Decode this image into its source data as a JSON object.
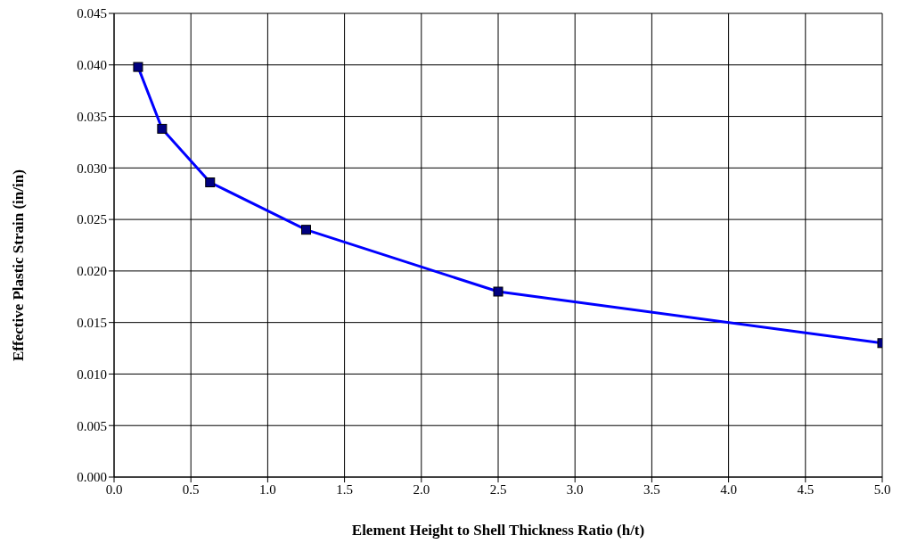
{
  "chart_data": {
    "type": "line",
    "xlabel": "Element Height to Shell Thickness Ratio (h/t)",
    "ylabel": "Effective Plastic Strain (in/in)",
    "x": [
      0.15625,
      0.3125,
      0.625,
      1.25,
      2.5,
      5
    ],
    "series": [
      {
        "color": "#0000ff",
        "values": [
          0.0398,
          0.0338,
          0.0286,
          0.024,
          0.018,
          0.013
        ]
      }
    ],
    "xlim": [
      0,
      5
    ],
    "xticks": [
      {
        "value": 0,
        "label": "0.0"
      },
      {
        "value": 0.5,
        "label": "0.5"
      },
      {
        "value": 1,
        "label": "1.0"
      },
      {
        "value": 1.5,
        "label": "1.5"
      },
      {
        "value": 2,
        "label": "2.0"
      },
      {
        "value": 2.5,
        "label": "2.5"
      },
      {
        "value": 3,
        "label": "3.0"
      },
      {
        "value": 3.5,
        "label": "3.5"
      },
      {
        "value": 4,
        "label": "4.0"
      },
      {
        "value": 4.5,
        "label": "4.5"
      },
      {
        "value": 5,
        "label": "5.0"
      }
    ],
    "ylim": [
      0,
      0.045
    ],
    "yticks": [
      {
        "value": 0,
        "label": "0.000"
      },
      {
        "value": 0.005,
        "label": "0.005"
      },
      {
        "value": 0.01,
        "label": "0.010"
      },
      {
        "value": 0.015,
        "label": "0.015"
      },
      {
        "value": 0.02,
        "label": "0.020"
      },
      {
        "value": 0.025,
        "label": "0.025"
      },
      {
        "value": 0.03,
        "label": "0.030"
      },
      {
        "value": 0.035,
        "label": "0.035"
      },
      {
        "value": 0.04,
        "label": "0.040"
      },
      {
        "value": 0.045,
        "label": "0.045"
      }
    ],
    "grid": true,
    "legend": false,
    "marker": "square",
    "line_style": "solid"
  }
}
